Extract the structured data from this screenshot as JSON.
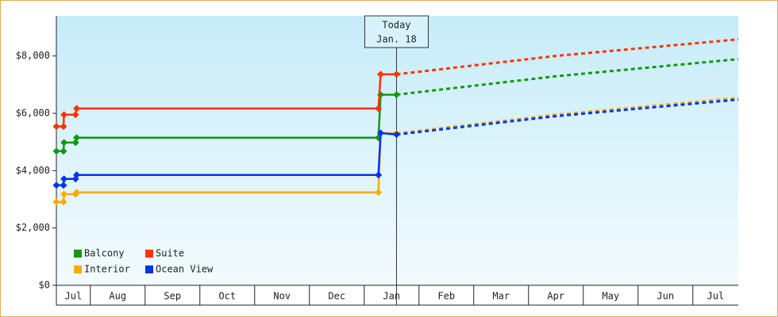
{
  "chart_data": {
    "type": "line",
    "ylim": [
      0,
      9400
    ],
    "yticks": [
      {
        "value": 0,
        "label": "$0"
      },
      {
        "value": 2000,
        "label": "$2,000"
      },
      {
        "value": 4000,
        "label": "$4,000"
      },
      {
        "value": 6000,
        "label": "$6,000"
      },
      {
        "value": 8000,
        "label": "$8,000"
      }
    ],
    "xlim": [
      0.38,
      12.83
    ],
    "xticks": [
      {
        "value": 0,
        "label": "Jul"
      },
      {
        "value": 1,
        "label": "Aug"
      },
      {
        "value": 2,
        "label": "Sep"
      },
      {
        "value": 3,
        "label": "Oct"
      },
      {
        "value": 4,
        "label": "Nov"
      },
      {
        "value": 5,
        "label": "Dec"
      },
      {
        "value": 6,
        "label": "Jan"
      },
      {
        "value": 7,
        "label": "Feb"
      },
      {
        "value": 8,
        "label": "Mar"
      },
      {
        "value": 9,
        "label": "Apr"
      },
      {
        "value": 10,
        "label": "May"
      },
      {
        "value": 11,
        "label": "Jun"
      },
      {
        "value": 12,
        "label": "Jul"
      }
    ],
    "today": {
      "x": 6.59,
      "lines": [
        "Today",
        "Jan. 18"
      ]
    },
    "series": [
      {
        "name": "Balcony",
        "color": "#119911",
        "x": [
          0.38,
          0.51,
          0.52,
          0.73,
          0.75,
          6.26,
          6.3,
          6.59
        ],
        "values": [
          4680,
          4680,
          4980,
          4980,
          5150,
          5150,
          6650,
          6650
        ],
        "forecast": {
          "x": [
            6.59,
            9.49,
            12.83
          ],
          "values": [
            6650,
            7290,
            7890
          ]
        }
      },
      {
        "name": "Suite",
        "color": "#ff3300",
        "x": [
          0.38,
          0.51,
          0.52,
          0.73,
          0.75,
          6.26,
          6.3,
          6.59
        ],
        "values": [
          5540,
          5540,
          5950,
          5950,
          6170,
          6170,
          7360,
          7360
        ],
        "forecast": {
          "x": [
            6.59,
            9.49,
            12.83
          ],
          "values": [
            7360,
            8000,
            8580
          ]
        }
      },
      {
        "name": "Interior",
        "color": "#ffaa00",
        "x": [
          0.38,
          0.51,
          0.52,
          0.73,
          0.75,
          6.26,
          6.3,
          6.59
        ],
        "values": [
          2910,
          2910,
          3180,
          3180,
          3240,
          3240,
          5310,
          5300
        ],
        "forecast": {
          "x": [
            6.59,
            9.49,
            12.83
          ],
          "values": [
            5300,
            5950,
            6540
          ]
        }
      },
      {
        "name": "Ocean View",
        "color": "#0033ee",
        "x": [
          0.38,
          0.51,
          0.52,
          0.73,
          0.75,
          6.26,
          6.3,
          6.59
        ],
        "values": [
          3490,
          3490,
          3710,
          3710,
          3850,
          3850,
          5310,
          5260
        ],
        "forecast": {
          "x": [
            6.59,
            9.49,
            12.83
          ],
          "values": [
            5260,
            5900,
            6480
          ]
        }
      }
    ]
  }
}
